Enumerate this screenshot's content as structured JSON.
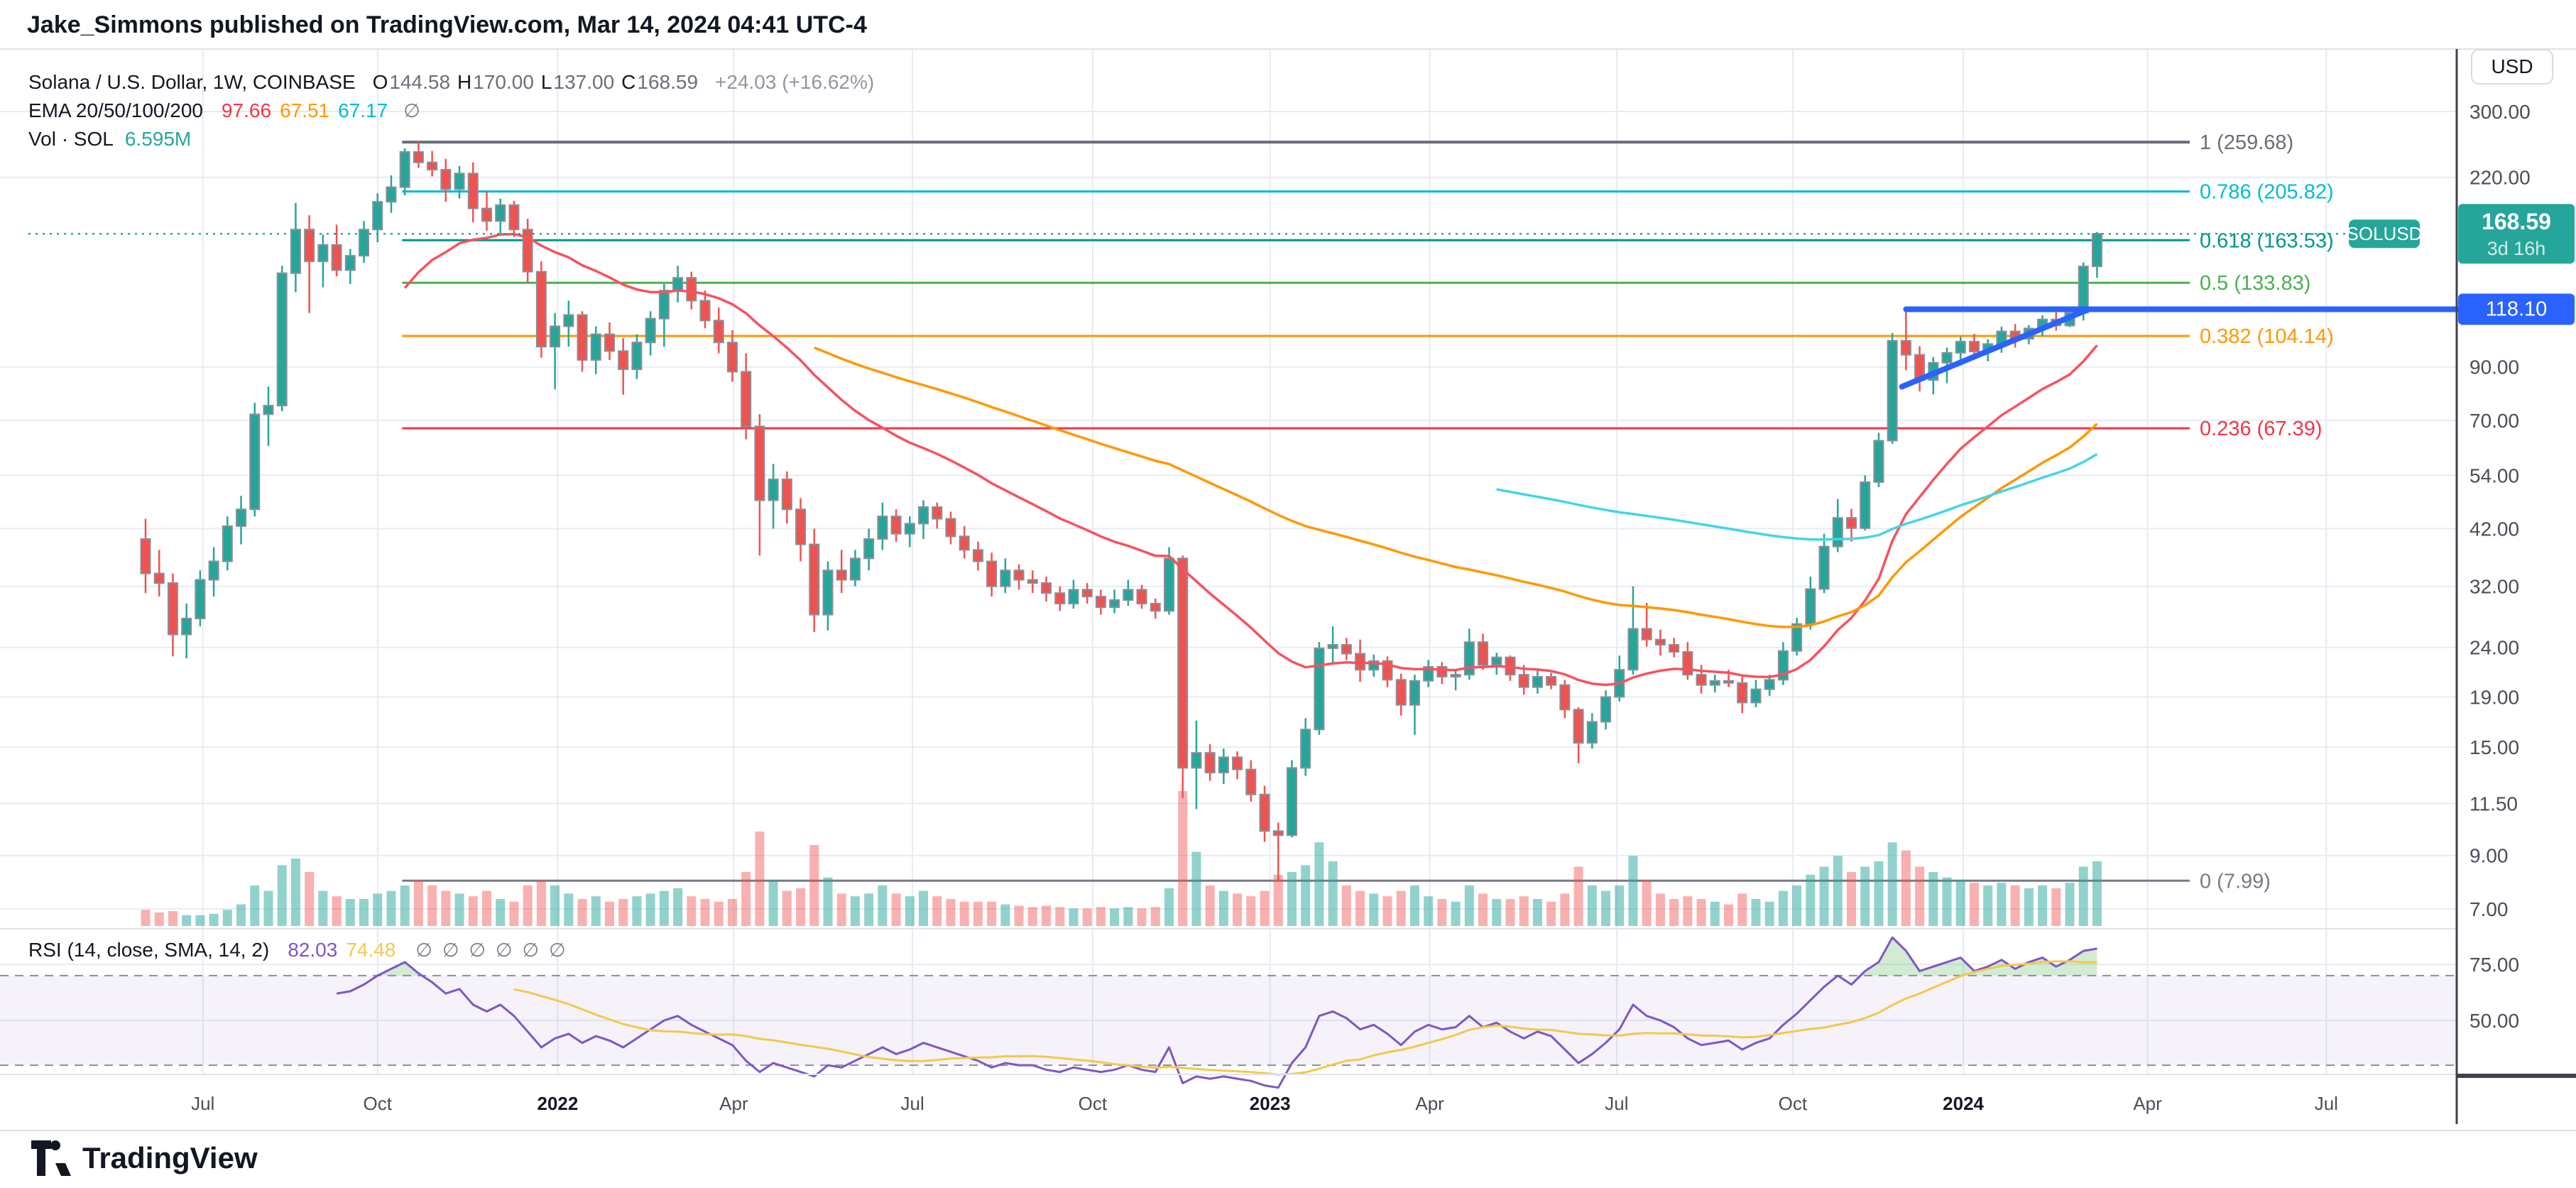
{
  "header": {
    "title": "Jake_Simmons published on TradingView.com, Mar 14, 2024 04:41 UTC-4"
  },
  "logo": {
    "text": "TradingView"
  },
  "legend": {
    "symbol": {
      "title": "Solana / U.S. Dollar, 1W, COINBASE",
      "ohlc": [
        {
          "k": "O",
          "v": "144.58"
        },
        {
          "k": "H",
          "v": "170.00"
        },
        {
          "k": "L",
          "v": "137.00"
        },
        {
          "k": "C",
          "v": "168.59"
        }
      ],
      "change": "+24.03 (+16.62%)"
    },
    "ema": {
      "title": "EMA 20/50/100/200",
      "values": [
        {
          "text": "97.66",
          "color": "#f23645"
        },
        {
          "text": "67.51",
          "color": "#ff9800"
        },
        {
          "text": "67.17",
          "color": "#00bcd4"
        }
      ],
      "hidden_icon": "∅"
    },
    "volume": {
      "title": "Vol · SOL",
      "value": "6.595M",
      "color": "#26a69a"
    },
    "rsi": {
      "title": "RSI (14, close, SMA, 14, 2)",
      "values": [
        {
          "text": "82.03",
          "color": "#7e57c2"
        },
        {
          "text": "74.48",
          "color": "#f2c94c"
        }
      ],
      "hidden_icon": "∅",
      "hidden_count": 6
    }
  },
  "axis": {
    "currency_button": "USD",
    "price_ticks": [
      "300.00",
      "220.00",
      "90.00",
      "70.00",
      "54.00",
      "42.00",
      "32.00",
      "24.00",
      "19.00",
      "15.00",
      "11.50",
      "9.00",
      "7.00"
    ],
    "price_tick_values": [
      300,
      220,
      90,
      70,
      54,
      42,
      32,
      24,
      19,
      15,
      11.5,
      9,
      7
    ],
    "rsi_ticks": [
      "75.00",
      "50.00"
    ],
    "rsi_tick_values": [
      75,
      50
    ],
    "time_ticks": [
      {
        "label": "Jul",
        "week": 4.2,
        "bold": false
      },
      {
        "label": "Oct",
        "week": 17.0,
        "bold": false
      },
      {
        "label": "2022",
        "week": 30.2,
        "bold": true
      },
      {
        "label": "Apr",
        "week": 43.1,
        "bold": false
      },
      {
        "label": "Jul",
        "week": 56.2,
        "bold": false
      },
      {
        "label": "Oct",
        "week": 69.4,
        "bold": false
      },
      {
        "label": "2023",
        "week": 82.4,
        "bold": true
      },
      {
        "label": "Apr",
        "week": 94.1,
        "bold": false
      },
      {
        "label": "Jul",
        "week": 107.8,
        "bold": false
      },
      {
        "label": "Oct",
        "week": 120.7,
        "bold": false
      },
      {
        "label": "2024",
        "week": 133.2,
        "bold": true
      },
      {
        "label": "Apr",
        "week": 146.7,
        "bold": false
      },
      {
        "label": "Jul",
        "week": 159.8,
        "bold": false
      }
    ],
    "price_badge": {
      "text": "168.59",
      "sub": "3d 16h",
      "color": "#26a69a",
      "price": 168.59
    },
    "line_badge": {
      "text": "118.10",
      "color": "#2962ff",
      "price": 118.1
    }
  },
  "chart_data": {
    "type": "candlestick",
    "symbol": "SOLUSD",
    "timeframe": "1W",
    "exchange": "COINBASE",
    "last": {
      "open": 144.58,
      "high": 170.0,
      "low": 137.0,
      "close": 168.59,
      "change": 24.03,
      "change_pct": 16.62,
      "volume": "6.595M"
    },
    "candles": [
      [
        40,
        44,
        31,
        34,
        12
      ],
      [
        34,
        38,
        30.5,
        32.5,
        10
      ],
      [
        32.5,
        34,
        23,
        25.5,
        11
      ],
      [
        25.5,
        29.5,
        22.8,
        27.5,
        8
      ],
      [
        27.5,
        34.5,
        26.5,
        33,
        8
      ],
      [
        33,
        38.5,
        30.5,
        36,
        9
      ],
      [
        36,
        44.5,
        34.5,
        42.5,
        12
      ],
      [
        42.5,
        49,
        39,
        46,
        16
      ],
      [
        46,
        76,
        44.5,
        72,
        30
      ],
      [
        72,
        82,
        62,
        75,
        26
      ],
      [
        75,
        145,
        73,
        140,
        45
      ],
      [
        140,
        195,
        128,
        172,
        50
      ],
      [
        172,
        184,
        116,
        148,
        40
      ],
      [
        148,
        168,
        131,
        160,
        26
      ],
      [
        160,
        176,
        138,
        142,
        22
      ],
      [
        142,
        157,
        133,
        152,
        20
      ],
      [
        152,
        179,
        147,
        172,
        20
      ],
      [
        172,
        204,
        162,
        196,
        24
      ],
      [
        196,
        222,
        186,
        210,
        26
      ],
      [
        210,
        252,
        202,
        248,
        30
      ],
      [
        248,
        259.68,
        230,
        236,
        34
      ],
      [
        236,
        249,
        221,
        228,
        30
      ],
      [
        228,
        240,
        196,
        208,
        26
      ],
      [
        208,
        232,
        199,
        224,
        24
      ],
      [
        224,
        236,
        178,
        190,
        22
      ],
      [
        190,
        206,
        171,
        179,
        26
      ],
      [
        179,
        199,
        167,
        193,
        20
      ],
      [
        193,
        197,
        166,
        172,
        18
      ],
      [
        172,
        181,
        134,
        141,
        30
      ],
      [
        141,
        148,
        94,
        99,
        34
      ],
      [
        99,
        116,
        81,
        109,
        30
      ],
      [
        109,
        123,
        99,
        115,
        24
      ],
      [
        115,
        117,
        88,
        93,
        20
      ],
      [
        93,
        109,
        87,
        105,
        22
      ],
      [
        105,
        111,
        93,
        97,
        18
      ],
      [
        97,
        103,
        79,
        89,
        20
      ],
      [
        89,
        105,
        85,
        101,
        22
      ],
      [
        101,
        117,
        95,
        113,
        24
      ],
      [
        113,
        133,
        99,
        129,
        26
      ],
      [
        129,
        145,
        122,
        137,
        28
      ],
      [
        137,
        141,
        118,
        123,
        22
      ],
      [
        123,
        129,
        108,
        112,
        20
      ],
      [
        112,
        119,
        96,
        101,
        18
      ],
      [
        101,
        107,
        84,
        88,
        20
      ],
      [
        88,
        96,
        64,
        68,
        40
      ],
      [
        68,
        72,
        37,
        48,
        70
      ],
      [
        48,
        57,
        42,
        53,
        34
      ],
      [
        53,
        55,
        43,
        46,
        26
      ],
      [
        46,
        48.5,
        36,
        39,
        28
      ],
      [
        39,
        42,
        25.8,
        28,
        60
      ],
      [
        28,
        36,
        26,
        34.5,
        36
      ],
      [
        34.5,
        38,
        31,
        33,
        24
      ],
      [
        33,
        38,
        32,
        36.5,
        22
      ],
      [
        36.5,
        42,
        34.5,
        40,
        24
      ],
      [
        40,
        47.5,
        38,
        44.5,
        30
      ],
      [
        44.5,
        46,
        39.5,
        41,
        24
      ],
      [
        41,
        44.5,
        38.5,
        43,
        22
      ],
      [
        43,
        48,
        40,
        46.5,
        26
      ],
      [
        46.5,
        47.5,
        42,
        44,
        22
      ],
      [
        44,
        45.5,
        39,
        40.5,
        20
      ],
      [
        40.5,
        42.5,
        36.5,
        38,
        18
      ],
      [
        38,
        39.5,
        34.5,
        36,
        18
      ],
      [
        36,
        37.5,
        30.5,
        32,
        18
      ],
      [
        32,
        36.5,
        31,
        34.5,
        16
      ],
      [
        34.5,
        35.5,
        31.5,
        33,
        15
      ],
      [
        33,
        34.5,
        31,
        32.5,
        14
      ],
      [
        32.5,
        33.5,
        29.8,
        31,
        15
      ],
      [
        31,
        32,
        28.5,
        29.5,
        14
      ],
      [
        29.5,
        33,
        28.8,
        31.5,
        13
      ],
      [
        31.5,
        32.5,
        29.5,
        30.5,
        13
      ],
      [
        30.5,
        31.5,
        28,
        29,
        14
      ],
      [
        29,
        31.5,
        28.2,
        30,
        13
      ],
      [
        30,
        33,
        29.2,
        31.5,
        14
      ],
      [
        31.5,
        32.2,
        28.8,
        29.5,
        13
      ],
      [
        29.5,
        30.2,
        27.5,
        28.5,
        14
      ],
      [
        28.5,
        38.5,
        28,
        36.5,
        28
      ],
      [
        36.5,
        37,
        11.8,
        13.6,
        100
      ],
      [
        13.6,
        17,
        11.2,
        14.6,
        55
      ],
      [
        14.6,
        15.2,
        12.8,
        13.3,
        30
      ],
      [
        13.3,
        14.9,
        12.6,
        14.3,
        26
      ],
      [
        14.3,
        14.7,
        12.9,
        13.5,
        24
      ],
      [
        13.5,
        14.1,
        11.6,
        12,
        22
      ],
      [
        12,
        12.5,
        9.6,
        10.1,
        26
      ],
      [
        10.1,
        10.5,
        7.99,
        9.9,
        38
      ],
      [
        9.9,
        14.1,
        9.8,
        13.6,
        40
      ],
      [
        13.6,
        17.2,
        13.1,
        16.3,
        45
      ],
      [
        16.3,
        24.6,
        15.9,
        23.9,
        62
      ],
      [
        23.9,
        26.5,
        22.1,
        24.3,
        48
      ],
      [
        24.3,
        25.1,
        22.6,
        23.3,
        30
      ],
      [
        23.3,
        24.9,
        20.4,
        21.6,
        26
      ],
      [
        21.6,
        23.2,
        20.9,
        22.5,
        24
      ],
      [
        22.5,
        23,
        19.9,
        20.6,
        22
      ],
      [
        20.6,
        21.2,
        17.4,
        18.3,
        26
      ],
      [
        18.3,
        21.1,
        15.9,
        20.5,
        30
      ],
      [
        20.5,
        22.6,
        19.9,
        21.9,
        22
      ],
      [
        21.9,
        22.4,
        20.2,
        20.9,
        20
      ],
      [
        20.9,
        21.6,
        19.6,
        21.1,
        18
      ],
      [
        21.1,
        26.2,
        20.6,
        24.6,
        30
      ],
      [
        24.6,
        25.6,
        21.6,
        22.1,
        24
      ],
      [
        22.1,
        23.4,
        21.1,
        22.9,
        20
      ],
      [
        22.9,
        23.1,
        20.5,
        21.1,
        20
      ],
      [
        21.1,
        22.1,
        19.2,
        19.9,
        22
      ],
      [
        19.9,
        21.6,
        19.3,
        20.9,
        20
      ],
      [
        20.9,
        21.3,
        19.7,
        20.1,
        18
      ],
      [
        20.1,
        20.6,
        17.2,
        17.9,
        24
      ],
      [
        17.9,
        18.1,
        13.9,
        15.3,
        44
      ],
      [
        15.3,
        17.6,
        14.9,
        16.9,
        30
      ],
      [
        16.9,
        19.6,
        16.3,
        19,
        26
      ],
      [
        19,
        23.1,
        18.6,
        21.6,
        30
      ],
      [
        21.6,
        32,
        21.1,
        26.2,
        52
      ],
      [
        26.2,
        29.6,
        24.1,
        24.9,
        34
      ],
      [
        24.9,
        26.1,
        23.1,
        24.3,
        24
      ],
      [
        24.3,
        25.1,
        22.9,
        23.5,
        20
      ],
      [
        23.5,
        24.6,
        20.6,
        21.1,
        22
      ],
      [
        21.1,
        22.1,
        19.3,
        20.1,
        20
      ],
      [
        20.1,
        21.1,
        19.4,
        20.5,
        18
      ],
      [
        20.5,
        21.6,
        19.9,
        20.3,
        16
      ],
      [
        20.3,
        20.9,
        17.6,
        18.5,
        24
      ],
      [
        18.5,
        20.6,
        18.1,
        19.7,
        20
      ],
      [
        19.7,
        21.1,
        19.1,
        20.6,
        18
      ],
      [
        20.6,
        24.6,
        20.1,
        23.6,
        26
      ],
      [
        23.6,
        27.6,
        23.1,
        26.8,
        30
      ],
      [
        26.8,
        33.5,
        26.1,
        31.6,
        38
      ],
      [
        31.6,
        41,
        31,
        38.6,
        44
      ],
      [
        38.6,
        48.3,
        37.6,
        44.2,
        52
      ],
      [
        44.2,
        46.1,
        39.5,
        42.1,
        40
      ],
      [
        42.1,
        54,
        41.6,
        52.3,
        44
      ],
      [
        52.3,
        66,
        51.1,
        63.6,
        48
      ],
      [
        63.6,
        105.6,
        62.6,
        101.8,
        62
      ],
      [
        101.8,
        118.1,
        88.6,
        95.3,
        56
      ],
      [
        95.3,
        99.2,
        80.2,
        84.6,
        44
      ],
      [
        84.6,
        94.3,
        79.1,
        91.8,
        40
      ],
      [
        91.8,
        98.6,
        83.4,
        96.2,
        36
      ],
      [
        96.2,
        103.8,
        90.6,
        101.4,
        34
      ],
      [
        101.4,
        105.2,
        93.8,
        96.8,
        32
      ],
      [
        96.8,
        102.6,
        92.4,
        100.3,
        30
      ],
      [
        100.3,
        108.8,
        96.2,
        106.4,
        32
      ],
      [
        106.4,
        110.2,
        98.6,
        102.8,
        30
      ],
      [
        102.8,
        109.6,
        100.1,
        107.9,
        28
      ],
      [
        107.9,
        114.8,
        104.2,
        112.6,
        30
      ],
      [
        112.6,
        117.2,
        106.8,
        109.4,
        28
      ],
      [
        109.4,
        118,
        108.6,
        116.2,
        32
      ],
      [
        116.2,
        147.3,
        112,
        144.58,
        44
      ],
      [
        144.58,
        170,
        137,
        168.59,
        48
      ]
    ],
    "rsi": [
      null,
      null,
      null,
      null,
      null,
      null,
      null,
      null,
      null,
      null,
      null,
      null,
      null,
      null,
      62,
      63,
      66,
      70,
      73,
      76,
      71,
      67,
      62,
      64,
      57,
      54,
      57,
      52,
      45,
      38,
      42,
      44,
      40,
      43,
      41,
      38,
      42,
      46,
      50,
      52,
      48,
      45,
      42,
      39,
      32,
      27,
      31,
      29,
      27,
      25,
      30,
      29,
      32,
      35,
      38,
      35,
      37,
      40,
      38,
      36,
      34,
      32,
      29,
      31,
      30,
      30,
      28,
      27,
      29,
      28,
      27,
      28,
      30,
      28,
      27,
      38,
      22,
      25,
      24,
      25,
      24,
      23,
      21,
      20,
      31,
      38,
      52,
      54,
      51,
      46,
      48,
      44,
      39,
      45,
      48,
      46,
      47,
      52,
      47,
      49,
      45,
      42,
      45,
      43,
      37,
      31,
      35,
      40,
      46,
      57,
      52,
      50,
      47,
      42,
      39,
      40,
      41,
      37,
      40,
      42,
      48,
      53,
      59,
      65,
      70,
      66,
      72,
      76,
      87,
      81,
      72,
      74,
      76,
      78,
      72,
      74,
      77,
      73,
      76,
      78,
      74,
      77,
      81,
      82.03
    ],
    "rsi_band": {
      "upper": 70,
      "lower": 30
    },
    "ema_periods": [
      {
        "period": 20,
        "color": "#f7525f"
      },
      {
        "period": 50,
        "color": "#ff9800"
      },
      {
        "period": 100,
        "color": "#45d4e8",
        "seed": 60
      }
    ],
    "fib_levels": [
      {
        "label": "1 (259.68)",
        "price": 259.68,
        "color": "#6a6d78",
        "width": 4
      },
      {
        "label": "0.786 (205.82)",
        "price": 205.82,
        "color": "#00bcd4",
        "width": 3
      },
      {
        "label": "0.618 (163.53)",
        "price": 163.53,
        "color": "#009688",
        "width": 3
      },
      {
        "label": "0.5 (133.83)",
        "price": 133.83,
        "color": "#4caf50",
        "width": 3
      },
      {
        "label": "0.382 (104.14)",
        "price": 104.14,
        "color": "#ff9800",
        "width": 3
      },
      {
        "label": "0.236 (67.39)",
        "price": 67.39,
        "color": "#f23645",
        "width": 3
      },
      {
        "label": "0 (7.99)",
        "price": 7.99,
        "color": "#787b86",
        "width": 3
      }
    ],
    "price_line": {
      "price": 168.59,
      "label": "SOLUSD",
      "color": "#26a69a"
    },
    "trendlines": [
      {
        "kind": "horizontal",
        "price": 118.1,
        "from_week": 129,
        "to_axis": true,
        "color": "#2962ff",
        "width": 8
      },
      {
        "kind": "diagonal",
        "from_week": 128.7,
        "from_price": 82,
        "to_week": 142.2,
        "to_price": 117.5,
        "color": "#2962ff",
        "width": 8
      }
    ],
    "colors": {
      "up_body": "#26a69a",
      "down_body": "#ef5350",
      "candle_border": "#8a8e98",
      "vol_up": "rgba(38,166,154,0.5)",
      "vol_down": "rgba(239,83,80,0.45)",
      "grid": "#e7ebf3",
      "axis_text": "#4a4e59",
      "axis_line": "#3e424c",
      "rsi_line": "#7e57c2",
      "rsi_sma": "#f2c94c",
      "rsi_band_fill": "#7e57c2",
      "rsi_over_fill": "rgba(76,175,80,0.25)",
      "dashed": "#8b8f9b",
      "separator": "#e0e3eb"
    }
  }
}
